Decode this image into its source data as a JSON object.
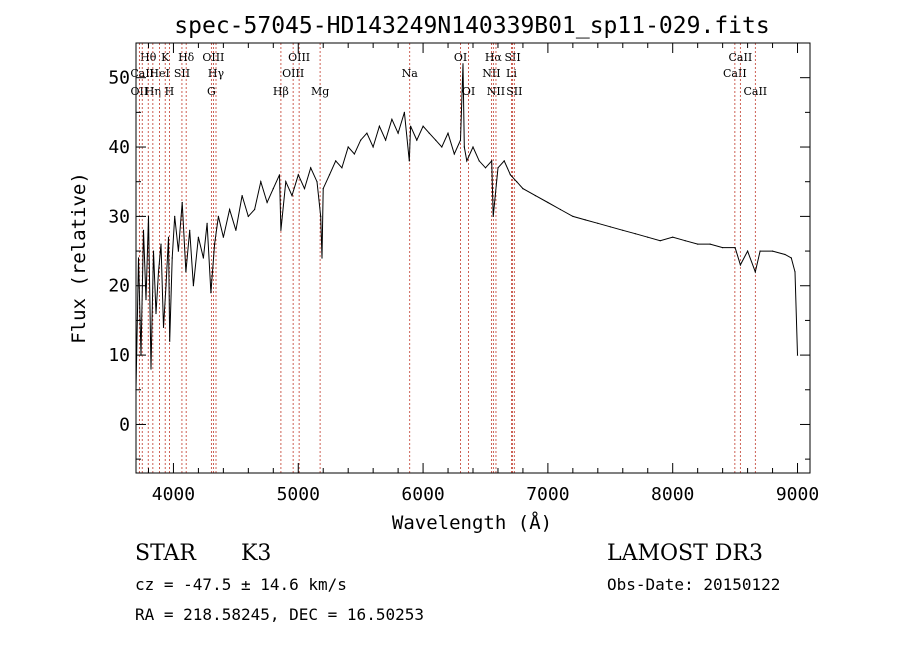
{
  "chart_data": {
    "type": "line",
    "title": "spec-57045-HD143249N140339B01_sp11-029.fits",
    "xlabel": "Wavelength (Å)",
    "ylabel": "Flux (relative)",
    "xlim": [
      3700,
      9100
    ],
    "ylim": [
      -7,
      55
    ],
    "xticks": [
      4000,
      5000,
      6000,
      7000,
      8000,
      9000
    ],
    "xtick_labels": [
      "4000",
      "5000",
      "6000",
      "7000",
      "8000",
      "9000"
    ],
    "yticks": [
      0,
      10,
      20,
      30,
      40,
      50
    ],
    "ytick_labels": [
      "0",
      "10",
      "20",
      "30",
      "40",
      "50"
    ],
    "series": [
      {
        "name": "flux",
        "x": [
          3700,
          3720,
          3740,
          3760,
          3780,
          3800,
          3820,
          3840,
          3860,
          3880,
          3900,
          3920,
          3940,
          3960,
          3970,
          3990,
          4010,
          4040,
          4070,
          4100,
          4130,
          4160,
          4200,
          4240,
          4270,
          4300,
          4330,
          4360,
          4400,
          4450,
          4500,
          4550,
          4600,
          4650,
          4700,
          4750,
          4800,
          4850,
          4861,
          4900,
          4950,
          5000,
          5050,
          5100,
          5150,
          5180,
          5190,
          5200,
          5250,
          5300,
          5350,
          5400,
          5450,
          5500,
          5550,
          5600,
          5650,
          5700,
          5750,
          5800,
          5850,
          5890,
          5900,
          5950,
          6000,
          6050,
          6100,
          6150,
          6200,
          6250,
          6300,
          6320,
          6330,
          6350,
          6400,
          6450,
          6500,
          6550,
          6562,
          6600,
          6650,
          6700,
          6750,
          6800,
          6900,
          7000,
          7100,
          7200,
          7300,
          7400,
          7500,
          7600,
          7700,
          7800,
          7900,
          8000,
          8100,
          8200,
          8300,
          8400,
          8500,
          8542,
          8600,
          8662,
          8700,
          8800,
          8900,
          8950,
          8980,
          9000
        ],
        "y": [
          5,
          24,
          10,
          28,
          18,
          30,
          8,
          25,
          16,
          22,
          26,
          14,
          20,
          27,
          12,
          24,
          30,
          25,
          32,
          22,
          28,
          20,
          27,
          24,
          29,
          19,
          26,
          30,
          27,
          31,
          28,
          33,
          30,
          31,
          35,
          32,
          34,
          36,
          28,
          35,
          33,
          36,
          34,
          37,
          35,
          30,
          24,
          34,
          36,
          38,
          37,
          40,
          39,
          41,
          42,
          40,
          43,
          41,
          44,
          42,
          45,
          38,
          43,
          41,
          43,
          42,
          41,
          40,
          42,
          39,
          41,
          52,
          40,
          38,
          40,
          38,
          37,
          38,
          30,
          37,
          38,
          36,
          35,
          34,
          33,
          32,
          31,
          30,
          29.5,
          29,
          28.5,
          28,
          27.5,
          27,
          26.5,
          27,
          26.5,
          26,
          26,
          25.5,
          25.5,
          23,
          25,
          22,
          25,
          25,
          24.5,
          24,
          22,
          10
        ]
      }
    ],
    "line_markers": [
      {
        "label": "Hθ",
        "x": 3798,
        "row": 1
      },
      {
        "label": "OII",
        "x": 3727,
        "row": 3
      },
      {
        "label": "CaII",
        "x": 3750,
        "row": 2
      },
      {
        "label": "Hη",
        "x": 3835,
        "row": 3
      },
      {
        "label": "HeI",
        "x": 3889,
        "row": 2
      },
      {
        "label": "K",
        "x": 3934,
        "row": 1
      },
      {
        "label": "H",
        "x": 3968,
        "row": 3
      },
      {
        "label": "SII",
        "x": 4068,
        "row": 2
      },
      {
        "label": "Hδ",
        "x": 4102,
        "row": 1
      },
      {
        "label": "OIII",
        "x": 4320,
        "row": 1
      },
      {
        "label": "Hγ",
        "x": 4341,
        "row": 2
      },
      {
        "label": "G",
        "x": 4304,
        "row": 3
      },
      {
        "label": "Hβ",
        "x": 4861,
        "row": 3
      },
      {
        "label": "OIII",
        "x": 4959,
        "row": 2
      },
      {
        "label": "OIII",
        "x": 5007,
        "row": 1
      },
      {
        "label": "Mg",
        "x": 5175,
        "row": 3
      },
      {
        "label": "Na",
        "x": 5893,
        "row": 2
      },
      {
        "label": "OI",
        "x": 6300,
        "row": 1
      },
      {
        "label": "OI",
        "x": 6364,
        "row": 3
      },
      {
        "label": "NII",
        "x": 6548,
        "row": 2
      },
      {
        "label": "Hα",
        "x": 6563,
        "row": 1
      },
      {
        "label": "NII",
        "x": 6584,
        "row": 3
      },
      {
        "label": "SII",
        "x": 6717,
        "row": 1
      },
      {
        "label": "Li",
        "x": 6708,
        "row": 2
      },
      {
        "label": "SII",
        "x": 6731,
        "row": 3
      },
      {
        "label": "CaII",
        "x": 8498,
        "row": 2
      },
      {
        "label": "CaII",
        "x": 8542,
        "row": 1
      },
      {
        "label": "CaII",
        "x": 8662,
        "row": 3
      }
    ]
  },
  "info": {
    "class": "STAR",
    "subclass": "K3",
    "survey": "LAMOST DR3",
    "cz": "cz = -47.5 ± 14.6 km/s",
    "obs_date": "Obs-Date: 20150122",
    "coords": "RA = 218.58245, DEC =  16.50253"
  }
}
